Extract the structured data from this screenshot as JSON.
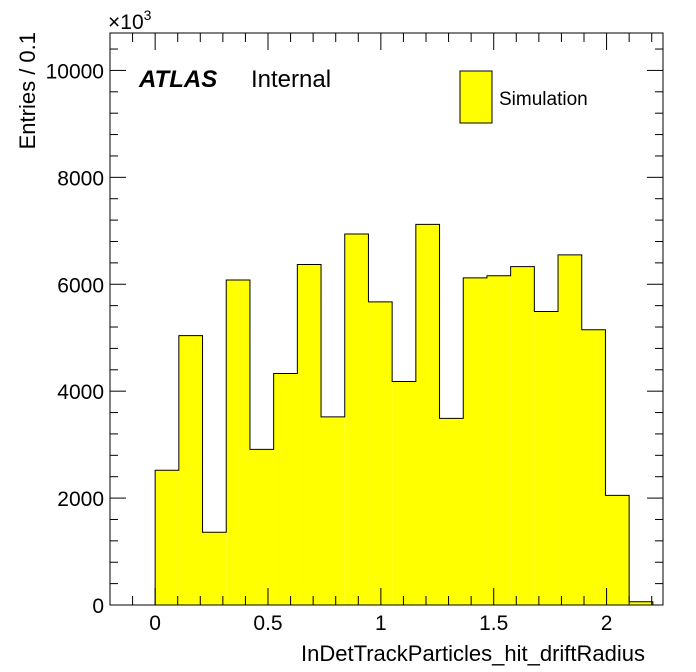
{
  "chart_data": {
    "type": "bar",
    "title": "",
    "xlabel": "InDetTrackParticles_hit_driftRadius",
    "ylabel": "Entries / 0.1",
    "y_multiplier_label": "×10",
    "y_multiplier_exponent": "3",
    "xlim": [
      -0.2,
      2.25
    ],
    "ylim": [
      0,
      10700
    ],
    "x_ticks": [
      0,
      0.5,
      1,
      1.5,
      2
    ],
    "x_tick_labels": [
      "0",
      "0.5",
      "1",
      "1.5",
      "2"
    ],
    "y_ticks": [
      0,
      2000,
      4000,
      6000,
      8000,
      10000
    ],
    "y_tick_labels": [
      "0",
      "2000",
      "4000",
      "6000",
      "8000",
      "10000"
    ],
    "bin_width": 0.105,
    "bins": [
      {
        "low": 0.0,
        "value": 2520
      },
      {
        "low": 0.105,
        "value": 5040
      },
      {
        "low": 0.21,
        "value": 1360
      },
      {
        "low": 0.315,
        "value": 6080
      },
      {
        "low": 0.42,
        "value": 2910
      },
      {
        "low": 0.525,
        "value": 4330
      },
      {
        "low": 0.63,
        "value": 6370
      },
      {
        "low": 0.735,
        "value": 3520
      },
      {
        "low": 0.84,
        "value": 6940
      },
      {
        "low": 0.945,
        "value": 5670
      },
      {
        "low": 1.05,
        "value": 4180
      },
      {
        "low": 1.155,
        "value": 7120
      },
      {
        "low": 1.26,
        "value": 3490
      },
      {
        "low": 1.365,
        "value": 6120
      },
      {
        "low": 1.47,
        "value": 6160
      },
      {
        "low": 1.575,
        "value": 6330
      },
      {
        "low": 1.68,
        "value": 5490
      },
      {
        "low": 1.785,
        "value": 6550
      },
      {
        "low": 1.89,
        "value": 5150
      },
      {
        "low": 1.995,
        "value": 2050
      },
      {
        "low": 2.1,
        "value": 60
      }
    ],
    "legend": {
      "entries": [
        "Simulation"
      ],
      "placement": "top-right"
    },
    "fill_color": "#ffff00",
    "line_color": "#000000",
    "grid": false
  },
  "labels": {
    "atlas": "ATLAS",
    "internal": "Internal"
  }
}
